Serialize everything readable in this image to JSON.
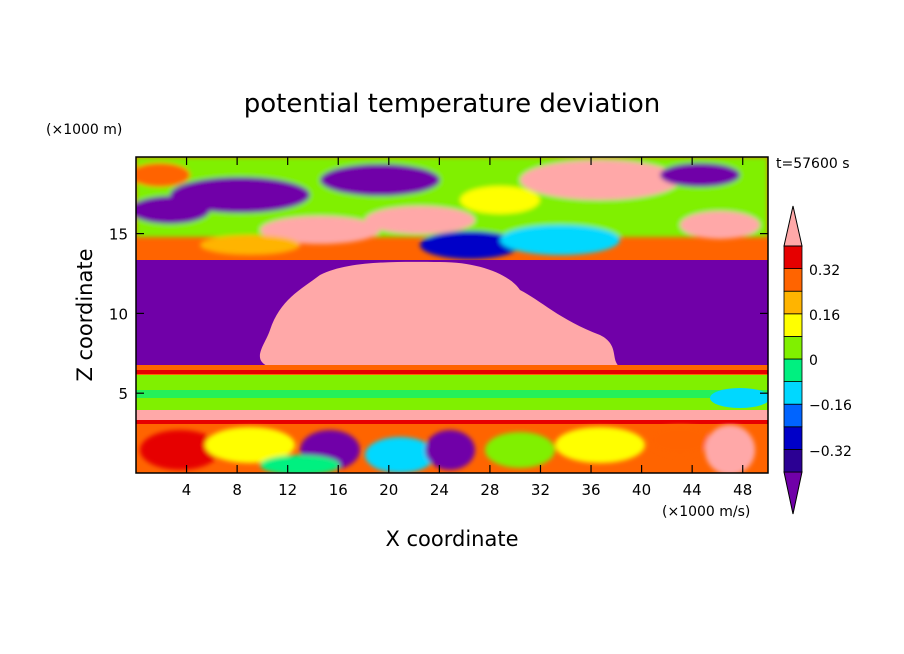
{
  "chart_data": {
    "type": "heatmap",
    "title": "potential temperature deviation",
    "xlabel": "X coordinate",
    "ylabel": "Z coordinate",
    "x_unit": "(×1000 m/s)",
    "y_unit": "(×1000 m)",
    "time_label": "t=57600 s",
    "xlim": [
      0,
      50
    ],
    "ylim": [
      0,
      19.8
    ],
    "x_ticks": [
      "4",
      "8",
      "12",
      "16",
      "20",
      "24",
      "28",
      "32",
      "36",
      "40",
      "44",
      "48"
    ],
    "y_ticks": [
      "5",
      "10",
      "15"
    ],
    "colorbar": {
      "tick_labels": [
        "0.32",
        "0.16",
        "0",
        "-0.16",
        "-0.32"
      ],
      "levels": [
        "<-0.40",
        "-0.40",
        "-0.32",
        "-0.24",
        "-0.16",
        "-0.08",
        "0",
        "0.08",
        "0.16",
        "0.24",
        "0.32",
        ">0.40"
      ],
      "colors": [
        "#7000a8",
        "#2b0093",
        "#0000c8",
        "#0064ff",
        "#00d8ff",
        "#00f080",
        "#80f000",
        "#ffff00",
        "#ffb400",
        "#ff6400",
        "#e60000",
        "#ffa8a8"
      ]
    }
  }
}
